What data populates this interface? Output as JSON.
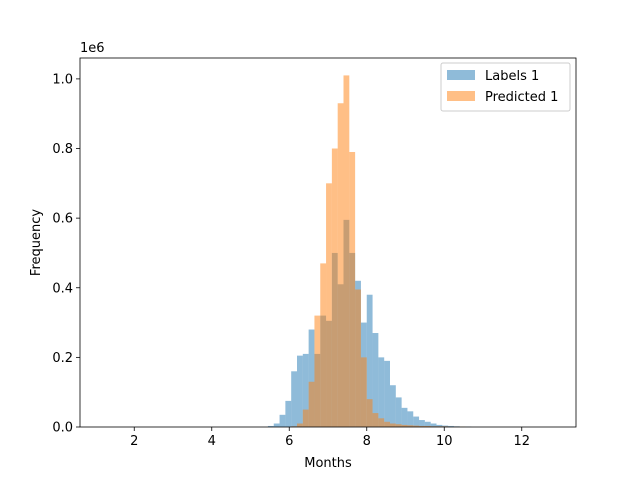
{
  "chart_data": {
    "type": "bar",
    "subtype": "histogram",
    "xlabel": "Months",
    "ylabel": "Frequency",
    "y_offset_label": "1e6",
    "xlim": [
      0.6,
      13.4
    ],
    "ylim": [
      0,
      1.06
    ],
    "bin_width": 0.15,
    "alpha": 0.5,
    "xticks": [
      2,
      4,
      6,
      8,
      10,
      12
    ],
    "yticks": [
      0.0,
      0.2,
      0.4,
      0.6,
      0.8,
      1.0
    ],
    "xtick_labels": [
      "2",
      "4",
      "6",
      "8",
      "10",
      "12"
    ],
    "ytick_labels": [
      "0.0",
      "0.2",
      "0.4",
      "0.6",
      "0.8",
      "1.0"
    ],
    "legend_position": "top-right",
    "series": [
      {
        "name": "Labels 1",
        "color": "#1f77b4",
        "bins_start": 5.45,
        "values": [
          0.003,
          0.01,
          0.035,
          0.075,
          0.16,
          0.205,
          0.21,
          0.28,
          0.21,
          0.32,
          0.305,
          0.5,
          0.41,
          0.595,
          0.5,
          0.42,
          0.3,
          0.38,
          0.27,
          0.2,
          0.19,
          0.12,
          0.085,
          0.055,
          0.045,
          0.03,
          0.02,
          0.015,
          0.01,
          0.006,
          0.004,
          0.003,
          0.002,
          0.001,
          0.001
        ]
      },
      {
        "name": "Predicted 1",
        "color": "#ff7f0e",
        "bins_start": 6.05,
        "values": [
          0.002,
          0.01,
          0.05,
          0.13,
          0.32,
          0.47,
          0.7,
          0.8,
          0.93,
          1.01,
          0.79,
          0.395,
          0.2,
          0.08,
          0.04,
          0.025,
          0.015,
          0.01,
          0.008,
          0.006,
          0.005,
          0.004,
          0.003,
          0.003,
          0.002,
          0.002,
          0.002,
          0.001,
          0.001,
          0.001
        ]
      }
    ]
  }
}
